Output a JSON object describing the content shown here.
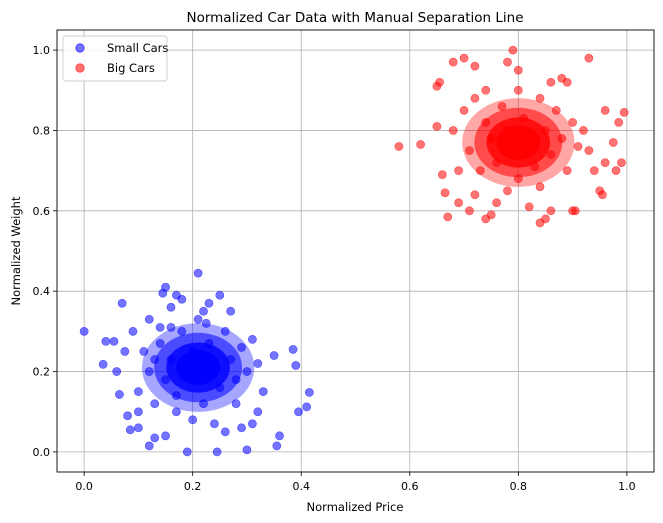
{
  "chart_data": {
    "type": "scatter",
    "title": "Normalized Car Data with Manual Separation Line",
    "xlabel": "Normalized Price",
    "ylabel": "Normalized Weight",
    "xlim": [
      -0.05,
      1.05
    ],
    "ylim": [
      -0.05,
      1.05
    ],
    "xticks": [
      0.0,
      0.2,
      0.4,
      0.6,
      0.8,
      1.0
    ],
    "yticks": [
      0.0,
      0.2,
      0.4,
      0.6,
      0.8,
      1.0
    ],
    "xtick_labels": [
      "0.0",
      "0.2",
      "0.4",
      "0.6",
      "0.8",
      "1.0"
    ],
    "ytick_labels": [
      "0.0",
      "0.2",
      "0.4",
      "0.6",
      "0.8",
      "1.0"
    ],
    "grid": true,
    "legend_position": "top-left",
    "series": [
      {
        "name": "Small Cars",
        "color": "#0000ff",
        "alpha": 0.55,
        "points": [
          [
            0.0,
            0.3
          ],
          [
            0.04,
            0.275
          ],
          [
            0.035,
            0.218
          ],
          [
            0.055,
            0.275
          ],
          [
            0.07,
            0.37
          ],
          [
            0.06,
            0.2
          ],
          [
            0.065,
            0.143
          ],
          [
            0.08,
            0.09
          ],
          [
            0.085,
            0.055
          ],
          [
            0.1,
            0.06
          ],
          [
            0.12,
            0.015
          ],
          [
            0.13,
            0.035
          ],
          [
            0.14,
            0.31
          ],
          [
            0.145,
            0.395
          ],
          [
            0.15,
            0.41
          ],
          [
            0.16,
            0.36
          ],
          [
            0.17,
            0.39
          ],
          [
            0.18,
            0.38
          ],
          [
            0.19,
            0.0
          ],
          [
            0.21,
            0.445
          ],
          [
            0.22,
            0.35
          ],
          [
            0.225,
            0.32
          ],
          [
            0.23,
            0.37
          ],
          [
            0.245,
            0.0
          ],
          [
            0.25,
            0.39
          ],
          [
            0.27,
            0.35
          ],
          [
            0.3,
            0.005
          ],
          [
            0.31,
            0.07
          ],
          [
            0.32,
            0.1
          ],
          [
            0.33,
            0.15
          ],
          [
            0.35,
            0.24
          ],
          [
            0.355,
            0.015
          ],
          [
            0.385,
            0.255
          ],
          [
            0.39,
            0.215
          ],
          [
            0.395,
            0.1
          ],
          [
            0.41,
            0.112
          ],
          [
            0.415,
            0.148
          ],
          [
            0.36,
            0.04
          ],
          [
            0.29,
            0.06
          ],
          [
            0.26,
            0.05
          ],
          [
            0.15,
            0.04
          ],
          [
            0.1,
            0.1
          ],
          [
            0.09,
            0.3
          ],
          [
            0.075,
            0.25
          ],
          [
            0.12,
            0.33
          ],
          [
            0.1,
            0.15
          ],
          [
            0.11,
            0.25
          ],
          [
            0.12,
            0.2
          ],
          [
            0.13,
            0.12
          ],
          [
            0.14,
            0.27
          ],
          [
            0.15,
            0.18
          ],
          [
            0.16,
            0.23
          ],
          [
            0.17,
            0.14
          ],
          [
            0.18,
            0.3
          ],
          [
            0.19,
            0.22
          ],
          [
            0.2,
            0.25
          ],
          [
            0.21,
            0.18
          ],
          [
            0.22,
            0.12
          ],
          [
            0.23,
            0.27
          ],
          [
            0.24,
            0.21
          ],
          [
            0.25,
            0.16
          ],
          [
            0.26,
            0.3
          ],
          [
            0.27,
            0.23
          ],
          [
            0.28,
            0.18
          ],
          [
            0.29,
            0.26
          ],
          [
            0.3,
            0.2
          ],
          [
            0.31,
            0.28
          ],
          [
            0.32,
            0.22
          ],
          [
            0.2,
            0.08
          ],
          [
            0.21,
            0.33
          ],
          [
            0.17,
            0.1
          ],
          [
            0.24,
            0.07
          ],
          [
            0.28,
            0.12
          ],
          [
            0.16,
            0.31
          ],
          [
            0.13,
            0.23
          ]
        ]
      },
      {
        "name": "Big Cars",
        "color": "#ff0000",
        "alpha": 0.55,
        "points": [
          [
            0.58,
            0.76
          ],
          [
            0.62,
            0.765
          ],
          [
            0.65,
            0.81
          ],
          [
            0.65,
            0.91
          ],
          [
            0.655,
            0.92
          ],
          [
            0.66,
            0.69
          ],
          [
            0.665,
            0.645
          ],
          [
            0.67,
            0.585
          ],
          [
            0.68,
            0.97
          ],
          [
            0.69,
            0.62
          ],
          [
            0.7,
            0.98
          ],
          [
            0.71,
            0.6
          ],
          [
            0.72,
            0.96
          ],
          [
            0.74,
            0.58
          ],
          [
            0.75,
            0.59
          ],
          [
            0.78,
            0.97
          ],
          [
            0.79,
            1.0
          ],
          [
            0.8,
            0.95
          ],
          [
            0.82,
            0.61
          ],
          [
            0.84,
            0.57
          ],
          [
            0.85,
            0.58
          ],
          [
            0.86,
            0.6
          ],
          [
            0.88,
            0.93
          ],
          [
            0.89,
            0.92
          ],
          [
            0.9,
            0.6
          ],
          [
            0.905,
            0.6
          ],
          [
            0.93,
            0.98
          ],
          [
            0.95,
            0.65
          ],
          [
            0.955,
            0.64
          ],
          [
            0.96,
            0.85
          ],
          [
            0.975,
            0.77
          ],
          [
            0.98,
            0.7
          ],
          [
            0.985,
            0.82
          ],
          [
            0.99,
            0.72
          ],
          [
            0.995,
            0.845
          ],
          [
            0.96,
            0.72
          ],
          [
            0.93,
            0.75
          ],
          [
            0.69,
            0.7
          ],
          [
            0.7,
            0.85
          ],
          [
            0.72,
            0.88
          ],
          [
            0.71,
            0.75
          ],
          [
            0.73,
            0.7
          ],
          [
            0.74,
            0.82
          ],
          [
            0.75,
            0.78
          ],
          [
            0.76,
            0.72
          ],
          [
            0.77,
            0.86
          ],
          [
            0.78,
            0.8
          ],
          [
            0.79,
            0.74
          ],
          [
            0.8,
            0.68
          ],
          [
            0.81,
            0.83
          ],
          [
            0.82,
            0.77
          ],
          [
            0.83,
            0.71
          ],
          [
            0.84,
            0.88
          ],
          [
            0.85,
            0.8
          ],
          [
            0.86,
            0.74
          ],
          [
            0.87,
            0.85
          ],
          [
            0.88,
            0.78
          ],
          [
            0.89,
            0.7
          ],
          [
            0.9,
            0.82
          ],
          [
            0.91,
            0.76
          ],
          [
            0.8,
            0.9
          ],
          [
            0.78,
            0.65
          ],
          [
            0.76,
            0.62
          ],
          [
            0.74,
            0.9
          ],
          [
            0.84,
            0.66
          ],
          [
            0.86,
            0.92
          ],
          [
            0.92,
            0.8
          ],
          [
            0.68,
            0.8
          ],
          [
            0.94,
            0.7
          ],
          [
            0.72,
            0.64
          ]
        ]
      }
    ],
    "clusters": [
      {
        "series": "Small Cars",
        "center": [
          0.21,
          0.21
        ],
        "spread": [
          0.045,
          0.048
        ]
      },
      {
        "series": "Big Cars",
        "center": [
          0.8,
          0.77
        ],
        "spread": [
          0.045,
          0.048
        ]
      }
    ]
  }
}
